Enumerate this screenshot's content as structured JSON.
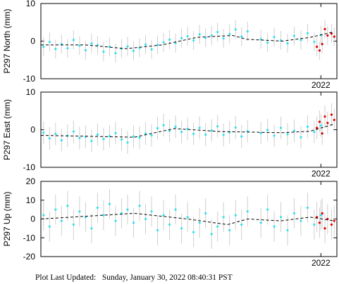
{
  "chart_data": [
    {
      "type": "scatter",
      "ylabel": "P297 North (mm)",
      "xlim": [
        2019.9,
        2022.12
      ],
      "ylim": [
        -10,
        10
      ],
      "xticks": [
        2022
      ],
      "yticks": [
        -10,
        0,
        10
      ],
      "series": [
        {
          "type": "scatter",
          "color": "#33e0f0",
          "error": 2.5,
          "x": [
            2019.92,
            2019.965,
            2020.01,
            2020.055,
            2020.1,
            2020.145,
            2020.19,
            2020.235,
            2020.28,
            2020.325,
            2020.37,
            2020.415,
            2020.46,
            2020.505,
            2020.55,
            2020.595,
            2020.64,
            2020.685,
            2020.73,
            2020.775,
            2020.82,
            2020.865,
            2020.91,
            2020.955,
            2021.0,
            2021.045,
            2021.09,
            2021.135,
            2021.18,
            2021.225,
            2021.27,
            2021.315,
            2021.36,
            2021.405,
            2021.45,
            2021.55,
            2021.6,
            2021.65,
            2021.7,
            2021.75,
            2021.8,
            2021.85,
            2021.9,
            2021.95,
            2022.0
          ],
          "values": [
            -1.5,
            -0.2,
            -2.1,
            -0.8,
            -1.9,
            0.3,
            -1.2,
            -2.4,
            -0.6,
            -1.1,
            -2.8,
            -1.5,
            -3.2,
            -2.0,
            -1.4,
            -2.6,
            -1.8,
            -0.9,
            -2.2,
            -1.0,
            -0.3,
            0.4,
            -0.5,
            0.8,
            1.3,
            0.2,
            1.8,
            0.9,
            1.5,
            2.4,
            0.7,
            1.9,
            3.1,
            1.2,
            2.6,
            0.5,
            -0.4,
            1.1,
            0.2,
            -0.6,
            1.4,
            0.3,
            2.1,
            -0.2,
            1.6
          ]
        },
        {
          "type": "scatter",
          "color": "#e00000",
          "error": 2.5,
          "x": [
            2021.97,
            2021.99,
            2022.01,
            2022.03,
            2022.05,
            2022.08,
            2022.1
          ],
          "values": [
            -1.5,
            -2.5,
            -0.8,
            3.2,
            1.5,
            2.0,
            1.2
          ]
        },
        {
          "type": "line",
          "color": "#000000",
          "x": [
            2019.9,
            2020.23,
            2020.54,
            2020.81,
            2021.07,
            2021.34,
            2021.44,
            2021.71,
            2021.92,
            2022.1
          ],
          "values": [
            -1,
            -1,
            -2,
            -1,
            1,
            1.5,
            0.5,
            0,
            1,
            2.5
          ]
        }
      ]
    },
    {
      "type": "scatter",
      "ylabel": "P297 East (mm)",
      "xlim": [
        2019.9,
        2022.12
      ],
      "ylim": [
        -10,
        10
      ],
      "xticks": [
        2022
      ],
      "yticks": [
        -10,
        0,
        10
      ],
      "series": [
        {
          "type": "scatter",
          "color": "#33e0f0",
          "error": 3,
          "x": [
            2019.92,
            2019.965,
            2020.01,
            2020.055,
            2020.1,
            2020.145,
            2020.19,
            2020.235,
            2020.28,
            2020.325,
            2020.37,
            2020.415,
            2020.46,
            2020.505,
            2020.55,
            2020.595,
            2020.64,
            2020.685,
            2020.73,
            2020.775,
            2020.82,
            2020.865,
            2020.91,
            2020.955,
            2021.0,
            2021.045,
            2021.09,
            2021.135,
            2021.18,
            2021.225,
            2021.27,
            2021.315,
            2021.36,
            2021.405,
            2021.45,
            2021.55,
            2021.6,
            2021.65,
            2021.7,
            2021.75,
            2021.8,
            2021.85,
            2021.9,
            2021.95,
            2022.0
          ],
          "values": [
            -0.8,
            -2.3,
            -1.1,
            -2.8,
            -1.6,
            -0.5,
            -2.2,
            -1.9,
            -3.0,
            -1.3,
            -2.5,
            -1.7,
            -0.9,
            -2.6,
            -3.4,
            -1.8,
            -2.1,
            -1.0,
            -1.5,
            0.4,
            1.2,
            -0.3,
            0.8,
            -0.6,
            0.2,
            -1.1,
            0.5,
            -1.3,
            -0.2,
            0.9,
            -1.4,
            -0.7,
            0.6,
            -1.8,
            -0.4,
            -0.9,
            -0.1,
            -1.6,
            0.5,
            -1.2,
            -0.3,
            -2.0,
            0.8,
            -0.6,
            1.1
          ]
        },
        {
          "type": "scatter",
          "color": "#e00000",
          "error": 3,
          "x": [
            2021.97,
            2021.99,
            2022.01,
            2022.03,
            2022.05,
            2022.08,
            2022.1
          ],
          "values": [
            0.5,
            2.1,
            -1.0,
            3.5,
            1.8,
            4.0,
            2.6
          ]
        },
        {
          "type": "line",
          "color": "#000000",
          "x": [
            2019.9,
            2020.6,
            2020.9,
            2021.25,
            2021.71,
            2021.92,
            2022.1
          ],
          "values": [
            -1.5,
            -2,
            0.3,
            -0.5,
            -0.8,
            -0.4,
            1.5
          ]
        }
      ]
    },
    {
      "type": "scatter",
      "ylabel": "P297 Up (mm)",
      "xlim": [
        2019.9,
        2022.12
      ],
      "ylim": [
        -20,
        20
      ],
      "xticks": [
        2022
      ],
      "yticks": [
        -20,
        -10,
        0,
        10,
        20
      ],
      "series": [
        {
          "type": "scatter",
          "color": "#33e0f0",
          "error": 8,
          "x": [
            2019.92,
            2019.965,
            2020.01,
            2020.055,
            2020.1,
            2020.145,
            2020.19,
            2020.235,
            2020.28,
            2020.325,
            2020.37,
            2020.415,
            2020.46,
            2020.505,
            2020.55,
            2020.595,
            2020.64,
            2020.685,
            2020.73,
            2020.775,
            2020.82,
            2020.865,
            2020.91,
            2020.955,
            2021.0,
            2021.045,
            2021.09,
            2021.135,
            2021.18,
            2021.225,
            2021.27,
            2021.315,
            2021.36,
            2021.405,
            2021.45,
            2021.55,
            2021.6,
            2021.65,
            2021.7,
            2021.75,
            2021.8,
            2021.85,
            2021.9,
            2021.95,
            2022.0
          ],
          "values": [
            2,
            -4,
            5,
            -1,
            7,
            -3,
            4,
            1,
            -5,
            6,
            2,
            8,
            -1,
            3,
            5,
            -2,
            7,
            0,
            4,
            -6,
            2,
            -3,
            5,
            -5,
            1,
            -7,
            -2,
            3,
            -8,
            -4,
            1,
            -6,
            2,
            -3,
            4,
            -2,
            5,
            -4,
            1,
            -6,
            3,
            -1,
            6,
            -3,
            2
          ]
        },
        {
          "type": "scatter",
          "color": "#e00000",
          "error": 8,
          "x": [
            2021.97,
            2021.99,
            2022.01,
            2022.03,
            2022.05,
            2022.08,
            2022.1
          ],
          "values": [
            1,
            -2,
            3,
            -5,
            0,
            -3,
            -1
          ]
        },
        {
          "type": "line",
          "color": "#000000",
          "x": [
            2019.9,
            2020.6,
            2021.0,
            2021.3,
            2021.45,
            2021.7,
            2021.92,
            2022.1
          ],
          "values": [
            0,
            3,
            0,
            -3,
            0,
            -1,
            1,
            -1
          ]
        }
      ]
    }
  ],
  "footer": "Plot Last Updated:   Sunday, January 30, 2022 08:40:31 PST"
}
